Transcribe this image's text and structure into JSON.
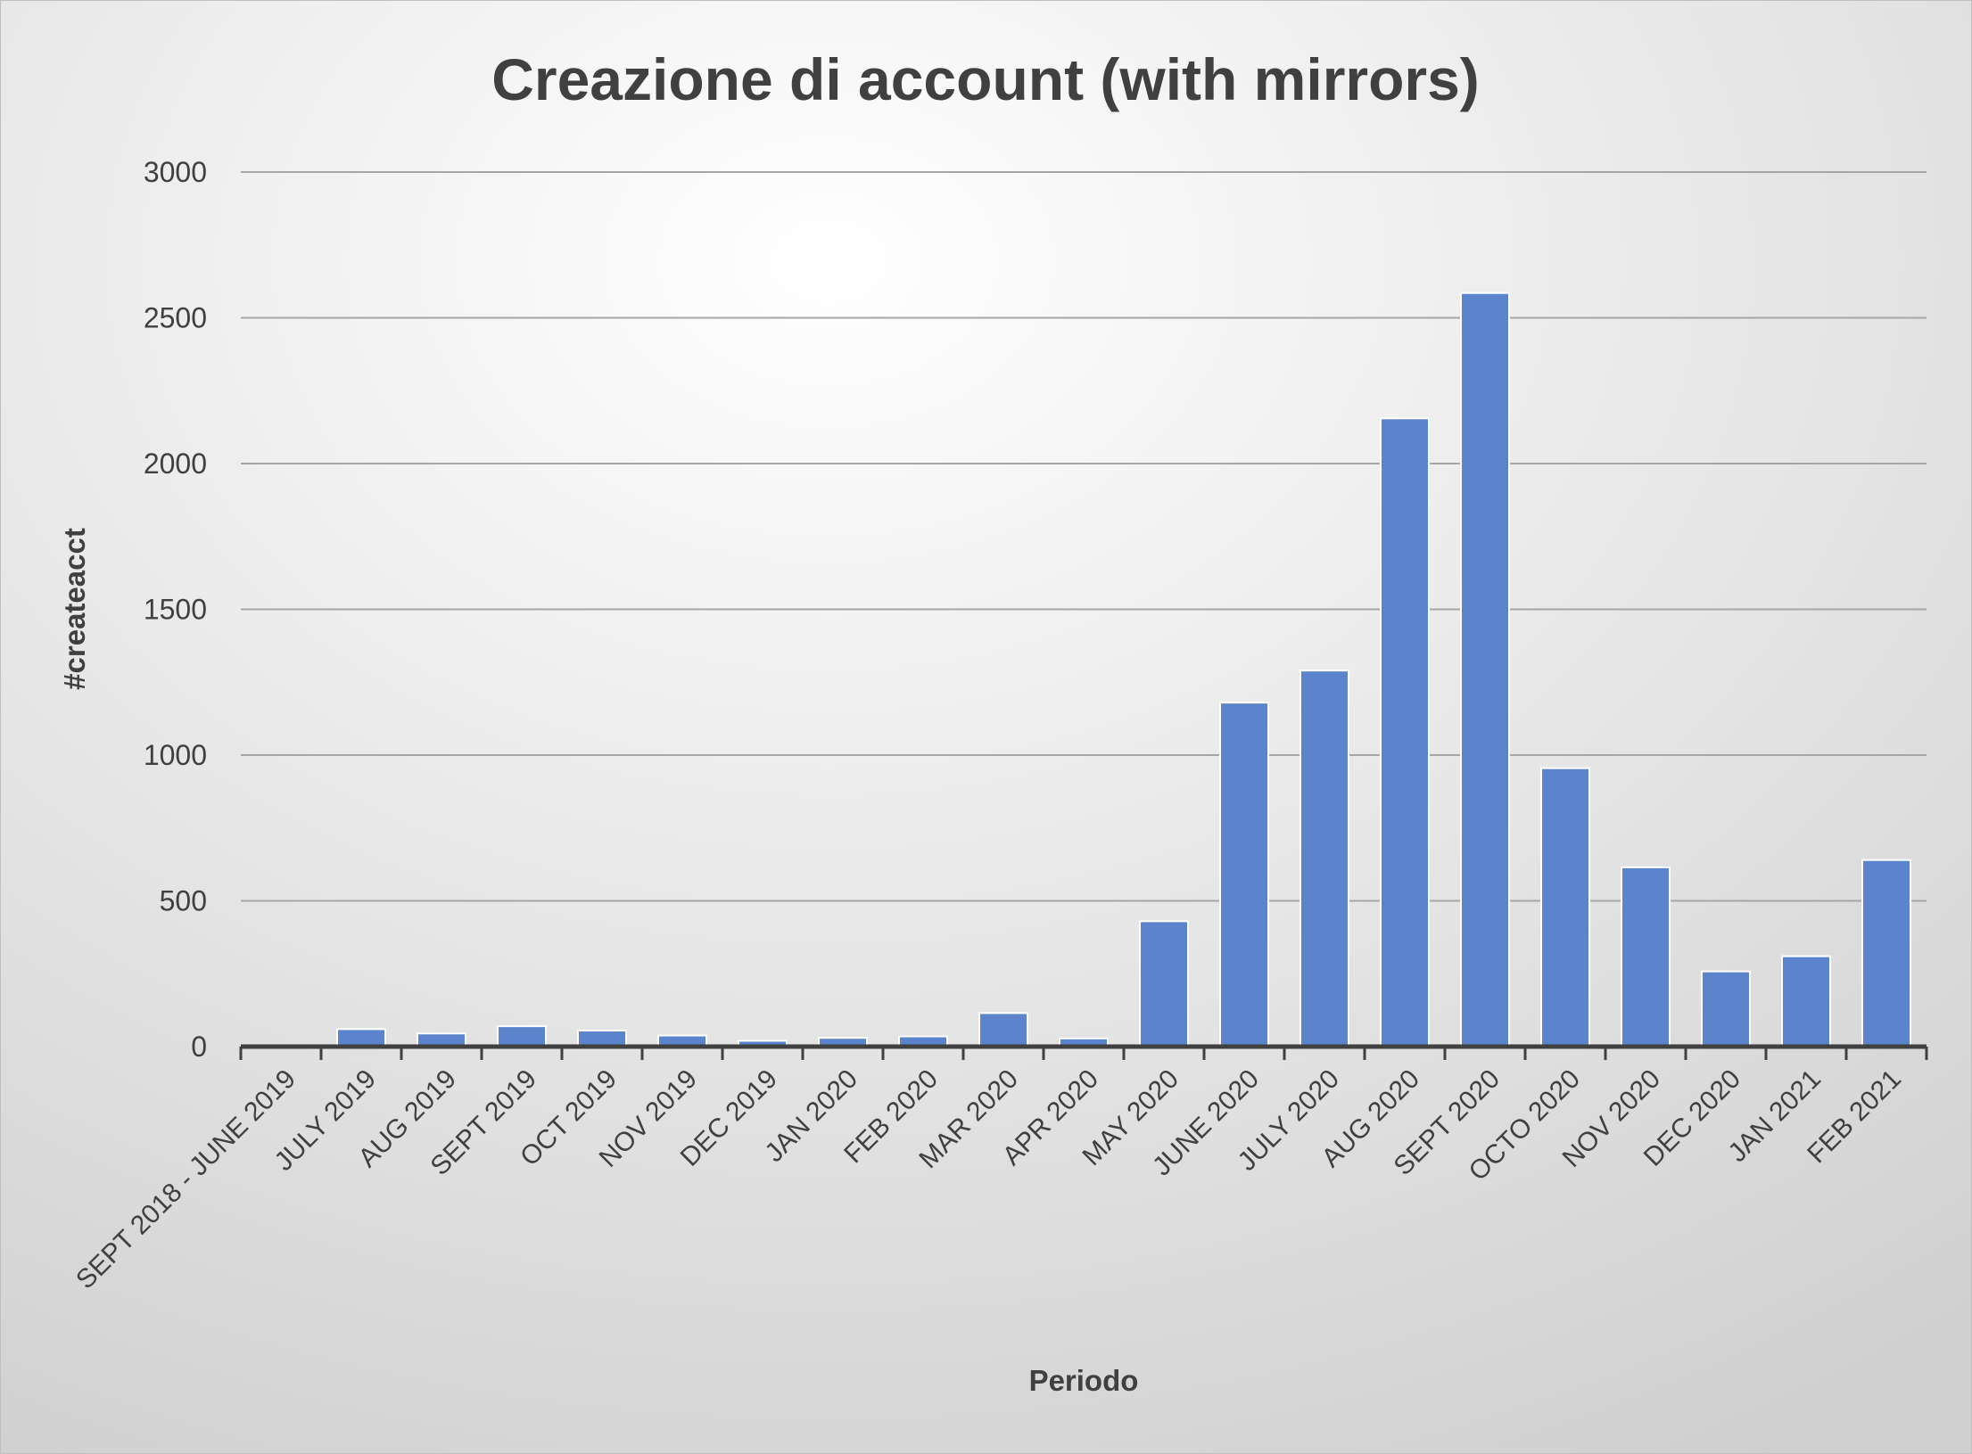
{
  "chart_data": {
    "type": "bar",
    "title": "Creazione di account (with mirrors)",
    "xlabel": "Periodo",
    "ylabel": "#createacct",
    "ylim": [
      0,
      3000
    ],
    "yticks": [
      "0",
      "500",
      "1000",
      "1500",
      "2000",
      "2500",
      "3000"
    ],
    "grid": true,
    "legend": "none",
    "categories": [
      "SEPT 2018 - JUNE 2019",
      "JULY 2019",
      "AUG 2019",
      "SEPT 2019",
      "OCT 2019",
      "NOV 2019",
      "DEC 2019",
      "JAN 2020",
      "FEB 2020",
      "MAR 2020",
      "APR 2020",
      "MAY 2020",
      "JUNE 2020",
      "JULY 2020",
      "AUG 2020",
      "SEPT 2020",
      "OCTO 2020",
      "NOV 2020",
      "DEC 2020",
      "JAN 2021",
      "FEB 2021"
    ],
    "values": [
      0,
      60,
      45,
      70,
      55,
      38,
      20,
      30,
      35,
      115,
      28,
      430,
      1180,
      1290,
      2155,
      2585,
      955,
      615,
      258,
      310,
      640
    ],
    "colors": {
      "bar": "#5b84cc",
      "bar_stroke": "#ffffff",
      "grid": "#a6a6a6",
      "axis": "#404040",
      "text": "#404040",
      "background_light": "#ffffff",
      "background_dark": "#cfcfcf"
    }
  }
}
